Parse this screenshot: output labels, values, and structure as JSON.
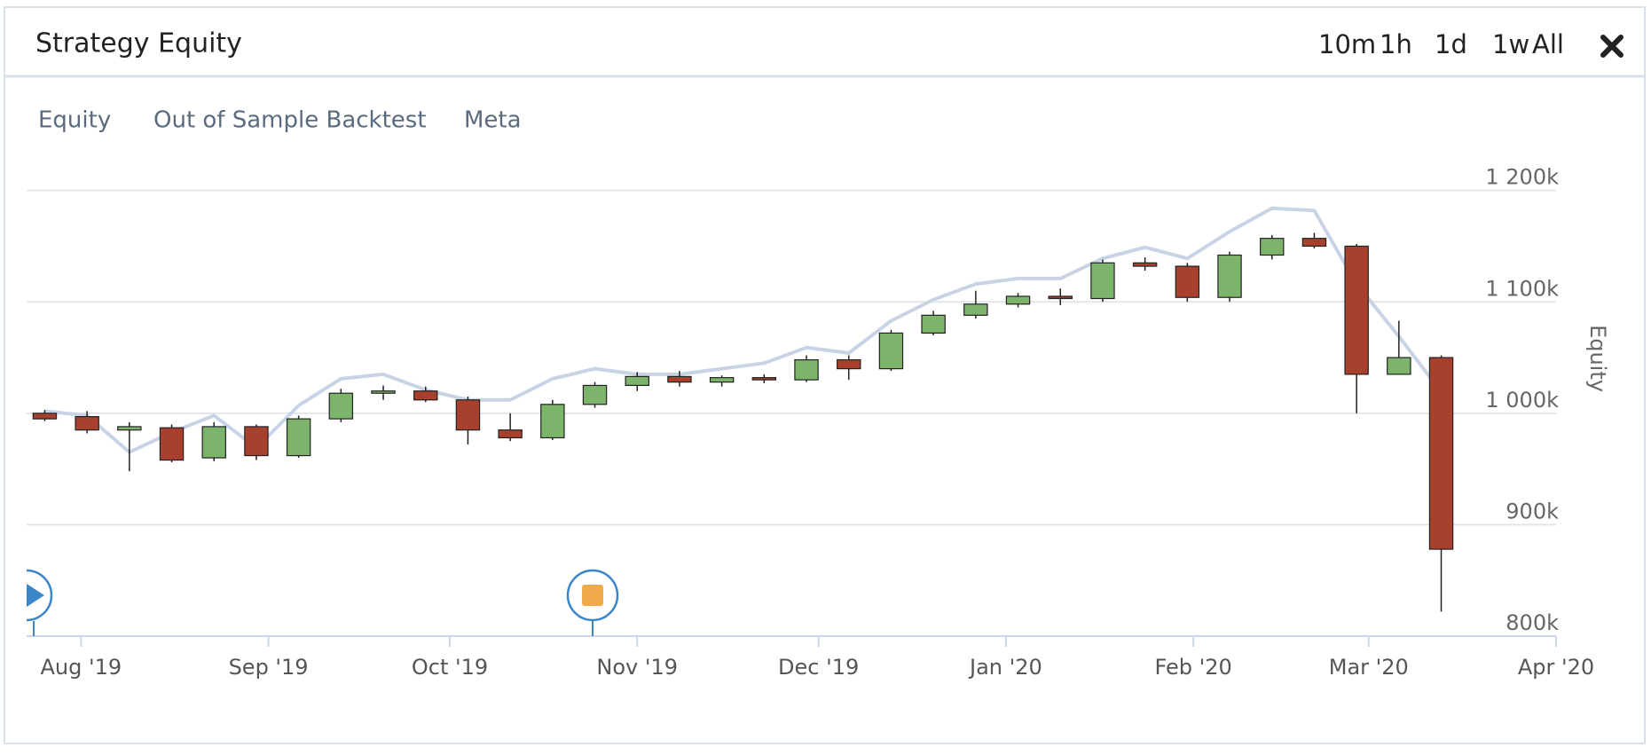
{
  "header": {
    "title": "Strategy Equity",
    "buttons": [
      "10m",
      "1h",
      "1d",
      "1w",
      "All"
    ]
  },
  "tabs": [
    "Equity",
    "Out of Sample Backtest",
    "Meta"
  ],
  "chart_data": {
    "type": "candlestick",
    "y_label": "Equity",
    "x": [
      "2019-07-26",
      "2019-08-02",
      "2019-08-09",
      "2019-08-16",
      "2019-08-23",
      "2019-08-30",
      "2019-09-06",
      "2019-09-13",
      "2019-09-20",
      "2019-09-27",
      "2019-10-04",
      "2019-10-11",
      "2019-10-18",
      "2019-10-25",
      "2019-11-01",
      "2019-11-08",
      "2019-11-15",
      "2019-11-22",
      "2019-11-29",
      "2019-12-06",
      "2019-12-13",
      "2019-12-20",
      "2019-12-27",
      "2020-01-03",
      "2020-01-10",
      "2020-01-17",
      "2020-01-24",
      "2020-01-31",
      "2020-02-07",
      "2020-02-14",
      "2020-02-21",
      "2020-02-28",
      "2020-03-06",
      "2020-03-13"
    ],
    "open": [
      1000000,
      997000,
      985000,
      987000,
      960000,
      988000,
      962000,
      995000,
      1018000,
      1020000,
      1012000,
      985000,
      978000,
      1008000,
      1025000,
      1033000,
      1028000,
      1032000,
      1030000,
      1048000,
      1040000,
      1072000,
      1088000,
      1098000,
      1105000,
      1103000,
      1135000,
      1132000,
      1104000,
      1142000,
      1157000,
      1150000,
      1035000,
      1050000
    ],
    "high": [
      1003000,
      1002000,
      992000,
      990000,
      992000,
      990000,
      998000,
      1022000,
      1025000,
      1024000,
      1015000,
      1000000,
      1012000,
      1028000,
      1037000,
      1038000,
      1034000,
      1035000,
      1052000,
      1052000,
      1075000,
      1092000,
      1110000,
      1108000,
      1112000,
      1138000,
      1140000,
      1135000,
      1145000,
      1160000,
      1162000,
      1152000,
      1083000,
      1052000
    ],
    "low": [
      993000,
      982000,
      948000,
      956000,
      957000,
      958000,
      960000,
      992000,
      1012000,
      1010000,
      972000,
      975000,
      976000,
      1005000,
      1020000,
      1024000,
      1024000,
      1027000,
      1028000,
      1030000,
      1038000,
      1070000,
      1085000,
      1095000,
      1097000,
      1100000,
      1128000,
      1100000,
      1100000,
      1138000,
      1148000,
      1000000,
      1035000,
      822000
    ],
    "close": [
      995000,
      985000,
      988000,
      958000,
      988000,
      962000,
      995000,
      1018000,
      1020000,
      1012000,
      985000,
      978000,
      1008000,
      1025000,
      1033000,
      1028000,
      1032000,
      1030000,
      1048000,
      1040000,
      1072000,
      1088000,
      1098000,
      1105000,
      1103000,
      1135000,
      1132000,
      1104000,
      1142000,
      1157000,
      1150000,
      1035000,
      1050000,
      878000
    ],
    "up_color": "#7db46c",
    "down_color": "#a8402e",
    "line_series": {
      "color": "#c8d4e6",
      "values": [
        1002000,
        998000,
        965000,
        983000,
        998000,
        969000,
        1007000,
        1031000,
        1035000,
        1021000,
        1012000,
        1012000,
        1031000,
        1040000,
        1035000,
        1035000,
        1040000,
        1045000,
        1059000,
        1054000,
        1083000,
        1102000,
        1116000,
        1121000,
        1121000,
        1139000,
        1149000,
        1139000,
        1163000,
        1184000,
        1182000,
        1116000,
        1069000,
        1019000
      ]
    },
    "xlim": [
      "2019-07-23",
      "2020-04-01"
    ],
    "xticks": [
      {
        "value": "2019-08-01",
        "label": "Aug '19"
      },
      {
        "value": "2019-09-01",
        "label": "Sep '19"
      },
      {
        "value": "2019-10-01",
        "label": "Oct '19"
      },
      {
        "value": "2019-11-01",
        "label": "Nov '19"
      },
      {
        "value": "2019-12-01",
        "label": "Dec '19"
      },
      {
        "value": "2020-01-01",
        "label": "Jan '20"
      },
      {
        "value": "2020-02-01",
        "label": "Feb '20"
      },
      {
        "value": "2020-03-01",
        "label": "Mar '20"
      },
      {
        "value": "2020-04-01",
        "label": "Apr '20"
      }
    ],
    "ylim": [
      800000,
      1230000
    ],
    "yticks": [
      {
        "value": 800000,
        "label": "800k"
      },
      {
        "value": 900000,
        "label": "900k"
      },
      {
        "value": 1000000,
        "label": "1 000k"
      },
      {
        "value": 1100000,
        "label": "1 100k"
      },
      {
        "value": 1200000,
        "label": "1 200k"
      }
    ],
    "grid": true
  }
}
